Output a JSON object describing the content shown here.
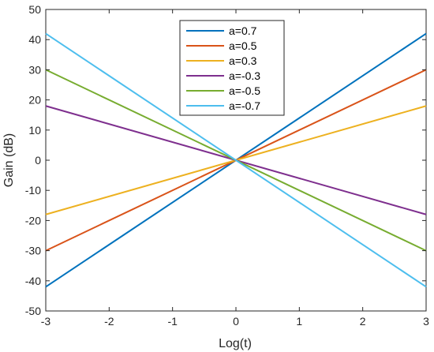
{
  "chart_data": {
    "type": "line",
    "title": "",
    "xlabel": "Log(t)",
    "ylabel": "Gain (dB)",
    "xlim": [
      -3,
      3
    ],
    "ylim": [
      -50,
      50
    ],
    "xticks": [
      -3,
      -2,
      -1,
      0,
      1,
      2,
      3
    ],
    "yticks": [
      -50,
      -40,
      -30,
      -20,
      -10,
      0,
      10,
      20,
      30,
      40,
      50
    ],
    "grid": false,
    "legend_position": "top-center",
    "series": [
      {
        "name": "a=0.7",
        "color": "#0072BD",
        "x": [
          -3,
          3
        ],
        "y": [
          -42,
          42
        ]
      },
      {
        "name": "a=0.5",
        "color": "#D95319",
        "x": [
          -3,
          3
        ],
        "y": [
          -30,
          30
        ]
      },
      {
        "name": "a=0.3",
        "color": "#EDB120",
        "x": [
          -3,
          3
        ],
        "y": [
          -18,
          18
        ]
      },
      {
        "name": "a=-0.3",
        "color": "#7E2F8E",
        "x": [
          -3,
          3
        ],
        "y": [
          18,
          -18
        ]
      },
      {
        "name": "a=-0.5",
        "color": "#77AC30",
        "x": [
          -3,
          3
        ],
        "y": [
          30,
          -30
        ]
      },
      {
        "name": "a=-0.7",
        "color": "#4DBEEE",
        "x": [
          -3,
          3
        ],
        "y": [
          42,
          -42
        ]
      }
    ]
  }
}
